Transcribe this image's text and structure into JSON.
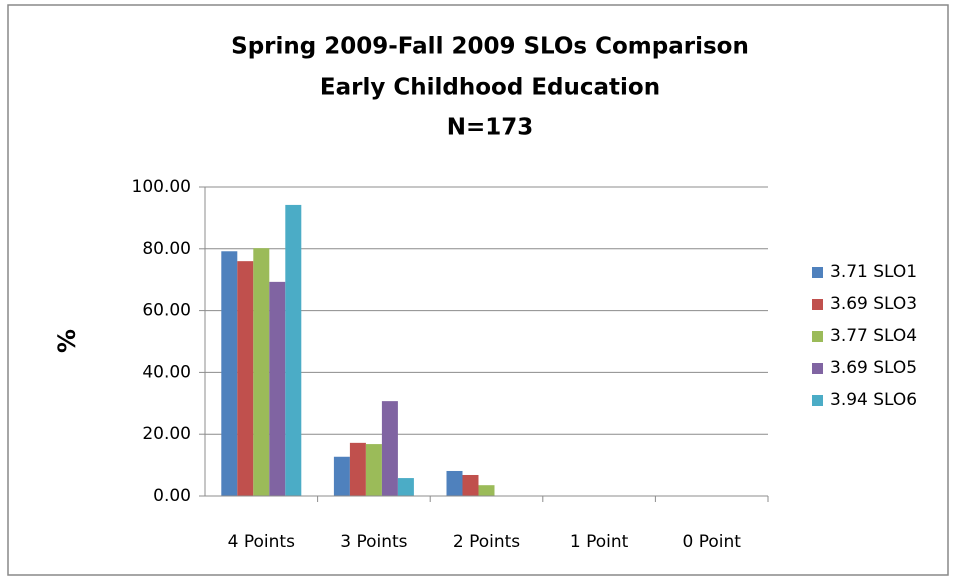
{
  "chart_data": {
    "type": "bar",
    "title": [
      "Spring 2009-Fall 2009 SLOs Comparison",
      "Early Childhood Education",
      "N=173"
    ],
    "y_label": "%",
    "categories": [
      "4 Points",
      "3 Points",
      "2 Points",
      "1 Point",
      "0 Point"
    ],
    "series": [
      {
        "name": "3.71 SLO1",
        "color": "#4f81bd",
        "values": [
          79.2,
          12.7,
          8.1,
          0,
          0
        ]
      },
      {
        "name": "3.69 SLO3",
        "color": "#c0504d",
        "values": [
          76.0,
          17.2,
          6.8,
          0,
          0
        ]
      },
      {
        "name": "3.77 SLO4",
        "color": "#9bbb59",
        "values": [
          80.2,
          16.8,
          3.5,
          0,
          0
        ]
      },
      {
        "name": "3.69 SLO5",
        "color": "#8064a2",
        "values": [
          69.3,
          30.7,
          0,
          0,
          0
        ]
      },
      {
        "name": "3.94 SLO6",
        "color": "#4bacc6",
        "values": [
          94.2,
          5.8,
          0,
          0,
          0
        ]
      }
    ],
    "ylim": [
      0,
      100
    ],
    "yticks": [
      {
        "value": 0,
        "label": "0.00"
      },
      {
        "value": 20,
        "label": "20.00"
      },
      {
        "value": 40,
        "label": "40.00"
      },
      {
        "value": 60,
        "label": "60.00"
      },
      {
        "value": 80,
        "label": "80.00"
      },
      {
        "value": 100,
        "label": "100.00"
      }
    ],
    "grid": true,
    "legend": "right"
  }
}
